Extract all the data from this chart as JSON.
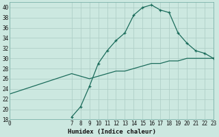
{
  "xlabel": "Humidex (Indice chaleur)",
  "bg_color": "#cce8e0",
  "grid_color": "#b0cfc8",
  "line_color": "#1a6b5a",
  "xlim": [
    0,
    23
  ],
  "ylim": [
    18,
    41
  ],
  "xticks": [
    0,
    7,
    8,
    9,
    10,
    11,
    12,
    13,
    14,
    15,
    16,
    17,
    18,
    19,
    20,
    21,
    22,
    23
  ],
  "yticks": [
    18,
    20,
    22,
    24,
    26,
    28,
    30,
    32,
    34,
    36,
    38,
    40
  ],
  "curve1_x": [
    7,
    8,
    9,
    10,
    11,
    12,
    13,
    14,
    15,
    16,
    17,
    18,
    19,
    20,
    21,
    22,
    23
  ],
  "curve1_y": [
    18.5,
    20.5,
    24.5,
    29,
    31.5,
    33.5,
    35,
    38.5,
    40,
    40.5,
    39.5,
    39,
    35,
    33,
    31.5,
    31,
    30
  ],
  "curve2_x": [
    0,
    7,
    8,
    9,
    10,
    11,
    12,
    13,
    14,
    15,
    16,
    17,
    18,
    19,
    20,
    21,
    22,
    23
  ],
  "curve2_y": [
    23,
    27,
    26.5,
    26,
    26.5,
    27,
    27.5,
    27.5,
    28,
    28.5,
    29,
    29,
    29.5,
    29.5,
    30,
    30,
    30,
    30
  ],
  "tick_fontsize": 5.5,
  "xlabel_fontsize": 6.5
}
